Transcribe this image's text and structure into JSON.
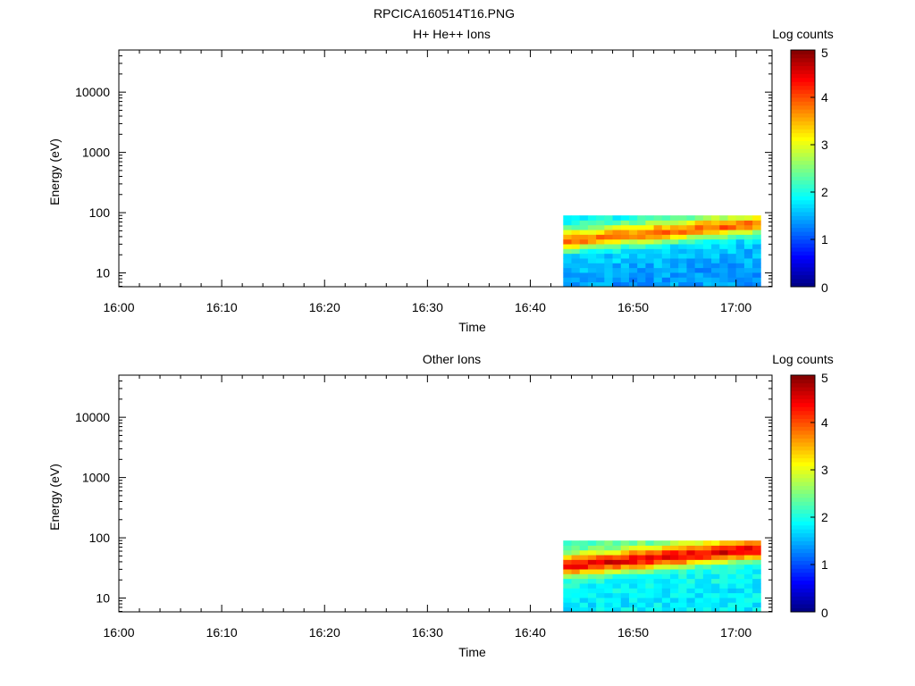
{
  "figure": {
    "title": "RPCICA160514T16.PNG"
  },
  "colors": {
    "axis": "#000000",
    "background": "#ffffff",
    "colormap": [
      "#00007f",
      "#0000ff",
      "#007fff",
      "#00ffff",
      "#7fff7f",
      "#ffff00",
      "#ff7f00",
      "#ff0000",
      "#7f0000"
    ]
  },
  "chart_data": [
    {
      "type": "heatmap",
      "title": "H+ He++ Ions",
      "xlabel": "Time",
      "ylabel": "Energy (eV)",
      "xticks": [
        "16:00",
        "16:10",
        "16:20",
        "16:30",
        "16:40",
        "16:50",
        "17:00"
      ],
      "xlim": [
        "16:00",
        "17:03.5"
      ],
      "yscale": "log",
      "ylim": [
        5.9,
        50000
      ],
      "yticks": [
        10,
        100,
        1000,
        10000
      ],
      "ytick_labels": [
        "10",
        "100",
        "1000",
        "10000"
      ],
      "colorbar": {
        "label": "Log counts",
        "min": 0,
        "max": 5,
        "ticks": [
          "0",
          "1",
          "2",
          "3",
          "4",
          "5"
        ]
      },
      "data_time_range": [
        "16:43.2",
        "17:02.4"
      ],
      "data_energy_range": [
        5.9,
        90
      ],
      "profile": {
        "energy": [
          7,
          9,
          11,
          14,
          18,
          22,
          27,
          33,
          40,
          49,
          60,
          73,
          87
        ],
        "log_counts": [
          1.4,
          1.5,
          1.5,
          1.6,
          1.7,
          2.1,
          3.0,
          4.0,
          3.6,
          2.8,
          2.2,
          1.9,
          1.8
        ]
      }
    },
    {
      "type": "heatmap",
      "title": "Other Ions",
      "xlabel": "Time",
      "ylabel": "Energy (eV)",
      "xticks": [
        "16:00",
        "16:10",
        "16:20",
        "16:30",
        "16:40",
        "16:50",
        "17:00"
      ],
      "xlim": [
        "16:00",
        "17:03.5"
      ],
      "yscale": "log",
      "ylim": [
        5.9,
        50000
      ],
      "yticks": [
        10,
        100,
        1000,
        10000
      ],
      "ytick_labels": [
        "10",
        "100",
        "1000",
        "10000"
      ],
      "colorbar": {
        "label": "Log counts",
        "min": 0,
        "max": 5,
        "ticks": [
          "0",
          "1",
          "2",
          "3",
          "4",
          "5"
        ]
      },
      "data_time_range": [
        "16:43.2",
        "17:02.4"
      ],
      "data_energy_range": [
        5.9,
        90
      ],
      "profile": {
        "energy": [
          7,
          9,
          11,
          14,
          18,
          22,
          27,
          33,
          40,
          49,
          60,
          73,
          87
        ],
        "log_counts": [
          1.8,
          1.8,
          1.9,
          1.9,
          2.0,
          2.5,
          3.6,
          4.6,
          4.2,
          3.2,
          2.5,
          2.3,
          2.3
        ]
      }
    }
  ]
}
